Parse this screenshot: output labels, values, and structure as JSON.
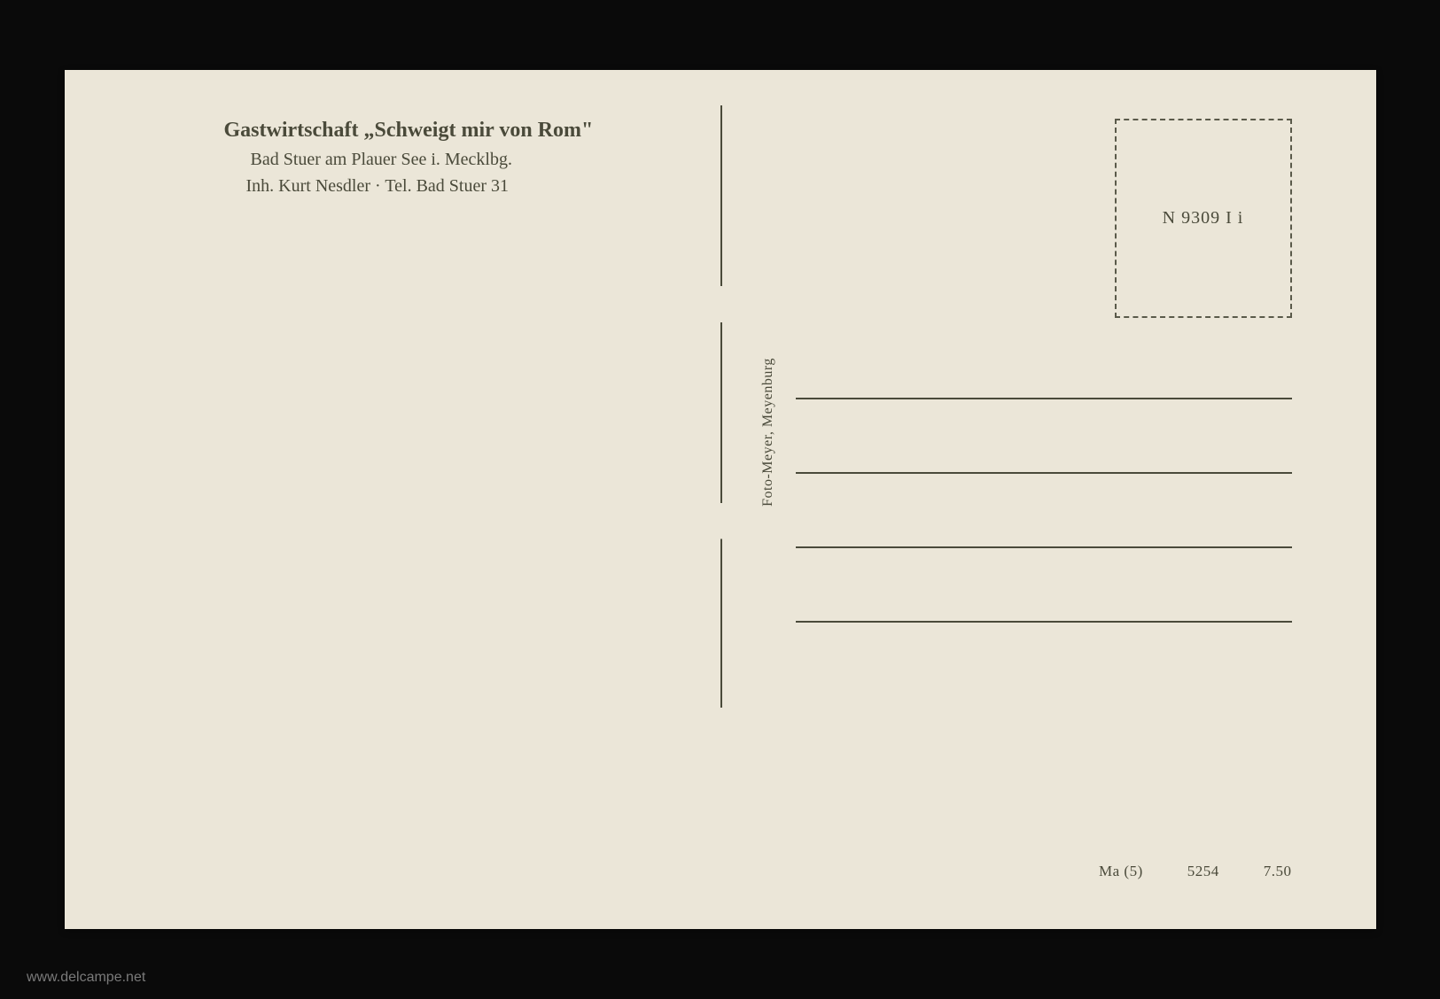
{
  "postcard": {
    "header": {
      "line1": "Gastwirtschaft „Schweigt mir von Rom\"",
      "line2": "Bad Stuer am Plauer See i. Mecklbg.",
      "line3": "Inh. Kurt Nesdler · Tel. Bad Stuer 31"
    },
    "publisher": "Foto-Meyer, Meyenburg",
    "stamp_code": "N 9309 I i",
    "bottom_codes": {
      "code1": "Ma (5)",
      "code2": "5254",
      "code3": "7.50"
    },
    "colors": {
      "background": "#0a0a0a",
      "card_bg": "#ebe6d8",
      "text": "#4a4a3a",
      "line": "#4a4a3a",
      "watermark": "#7a7a7a"
    },
    "watermark": "www.delcampe.net"
  }
}
